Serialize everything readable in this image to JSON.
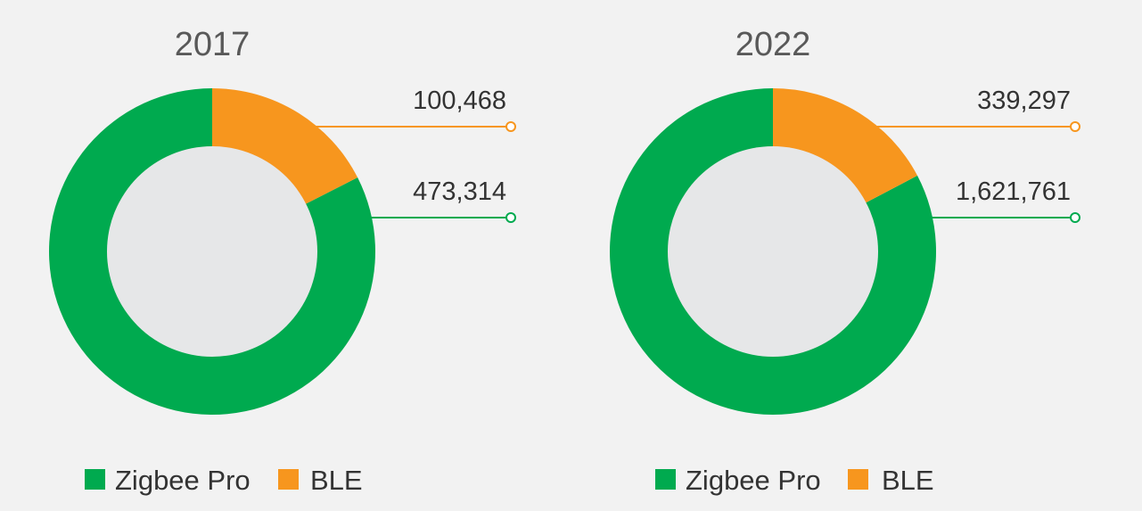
{
  "chart_data": [
    {
      "type": "pie",
      "variant": "donut",
      "title": "2017",
      "categories": [
        "Zigbee Pro",
        "BLE"
      ],
      "values": [
        473314,
        100468
      ],
      "value_labels": [
        "473,314",
        "100,468"
      ],
      "colors": [
        "#00aa4f",
        "#f7961e"
      ],
      "legend": {
        "position": "bottom-left",
        "entries": [
          {
            "label": "Zigbee Pro",
            "color": "#00aa4f"
          },
          {
            "label": "BLE",
            "color": "#f7961e"
          }
        ]
      }
    },
    {
      "type": "pie",
      "variant": "donut",
      "title": "2022",
      "categories": [
        "Zigbee Pro",
        "BLE"
      ],
      "values": [
        1621761,
        339297
      ],
      "value_labels": [
        "1,621,761",
        "339,297"
      ],
      "colors": [
        "#00aa4f",
        "#f7961e"
      ],
      "legend": {
        "position": "bottom-left",
        "entries": [
          {
            "label": "Zigbee Pro",
            "color": "#00aa4f"
          },
          {
            "label": "BLE",
            "color": "#f7961e"
          }
        ]
      }
    }
  ],
  "colors": {
    "background": "#f2f2f2",
    "donut_hole": "#e6e7e8",
    "zigbee": "#00aa4f",
    "ble": "#f7961e"
  }
}
